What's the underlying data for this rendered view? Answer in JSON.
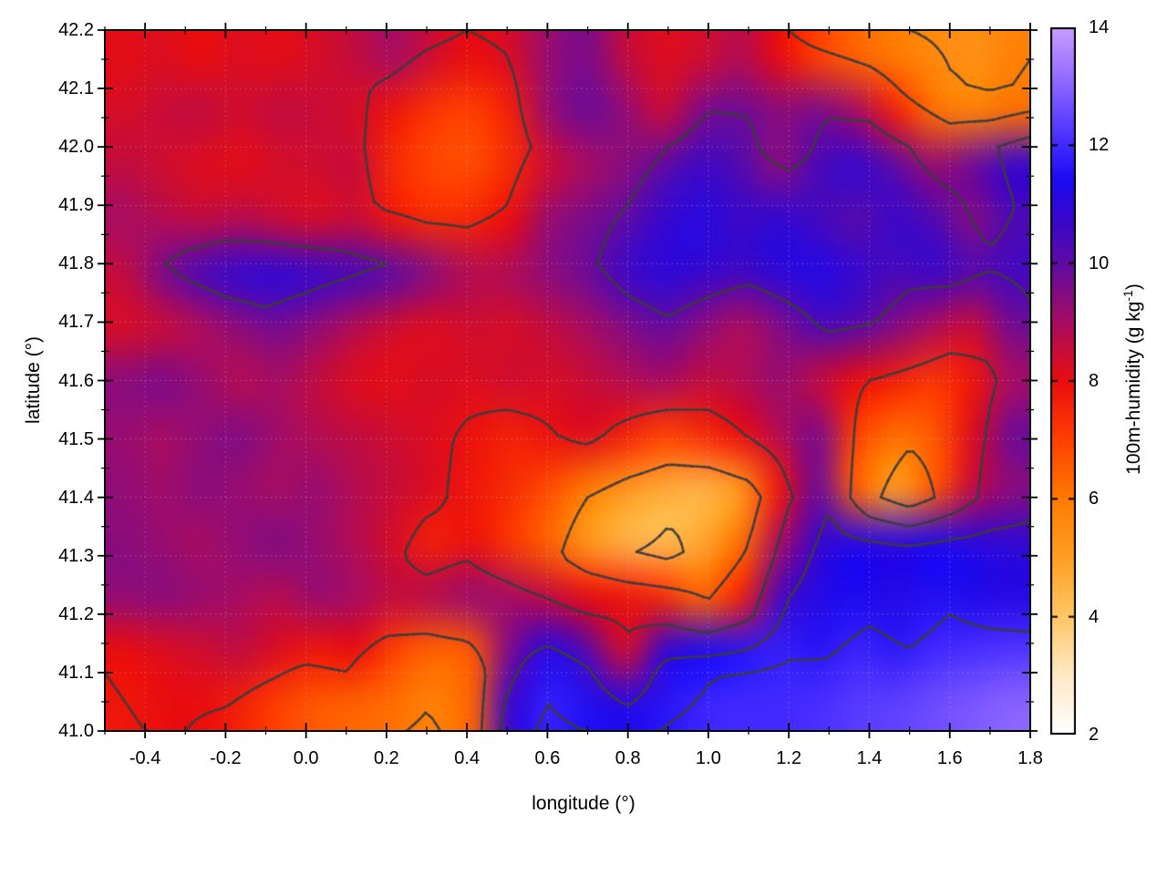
{
  "chart_data": {
    "type": "heatmap",
    "title": "",
    "xlabel": "longitude (°)",
    "ylabel": "latitude (°)",
    "xlim": [
      -0.5,
      1.8
    ],
    "ylim": [
      41.0,
      42.2
    ],
    "grid_dotted": true,
    "x_tick_values": [
      -0.4,
      -0.2,
      0.0,
      0.2,
      0.4,
      0.6,
      0.8,
      1.0,
      1.2,
      1.4,
      1.6,
      1.8
    ],
    "x_tick_labels": [
      "-0.4",
      "-0.2",
      "0.0",
      "0.2",
      "0.4",
      "0.6",
      "0.8",
      "1.0",
      "1.2",
      "1.4",
      "1.6",
      "1.8"
    ],
    "x_minor_step": 0.1,
    "y_tick_values": [
      41.0,
      41.1,
      41.2,
      41.3,
      41.4,
      41.5,
      41.6,
      41.7,
      41.8,
      41.9,
      42.0,
      42.1,
      42.2
    ],
    "y_tick_labels": [
      "41.0",
      "41.1",
      "41.2",
      "41.3",
      "41.4",
      "41.5",
      "41.6",
      "41.7",
      "41.8",
      "41.9",
      "42.0",
      "42.1",
      "42.2"
    ],
    "y_minor_step": 0.05,
    "contour_levels": [
      4.5,
      6,
      8,
      10,
      11.5
    ],
    "contour_color": "#3c3c3c",
    "grid_line_color": "#c8c8c8",
    "frame_color": "#000000",
    "colorbar": {
      "label_main": "100m-humidity (g kg",
      "label_sup": "-1",
      "label_end": ")",
      "min": 2,
      "max": 14,
      "tick_values": [
        2,
        4,
        6,
        8,
        10,
        12,
        14
      ],
      "tick_labels": [
        "2",
        "4",
        "6",
        "8",
        "10",
        "12",
        "14"
      ],
      "palette": [
        {
          "v": 2,
          "c": "#ffffff"
        },
        {
          "v": 3,
          "c": "#ffe9c6"
        },
        {
          "v": 4,
          "c": "#ffc766"
        },
        {
          "v": 5,
          "c": "#ff9e24"
        },
        {
          "v": 6,
          "c": "#ff7b00"
        },
        {
          "v": 7,
          "c": "#ff4000"
        },
        {
          "v": 8,
          "c": "#e90d0e"
        },
        {
          "v": 9,
          "c": "#a70c62"
        },
        {
          "v": 10,
          "c": "#5e0ba4"
        },
        {
          "v": 10.7,
          "c": "#3a07c8"
        },
        {
          "v": 11.4,
          "c": "#1c0af0"
        },
        {
          "v": 12,
          "c": "#4129ff"
        },
        {
          "v": 13,
          "c": "#8a63ff"
        },
        {
          "v": 14,
          "c": "#c89eff"
        }
      ]
    },
    "field": {
      "units": "g kg-1",
      "lon_min": -0.5,
      "lon_max": 1.8,
      "lat_min": 41.0,
      "lat_max": 42.2,
      "cols": 24,
      "rows": 13,
      "row_order": "north_to_south (42.2 -> 41.0, step 0.1)",
      "col_order": "west_to_east (-0.5 -> 1.8, step 0.1)",
      "values": [
        [
          8.1,
          8.2,
          8.0,
          8.2,
          8.1,
          8.3,
          8.6,
          9.0,
          8.4,
          8.0,
          8.3,
          9.2,
          9.6,
          8.6,
          8.2,
          8.4,
          8.8,
          8.0,
          7.0,
          6.4,
          6.0,
          5.6,
          5.4,
          5.8
        ],
        [
          8.3,
          8.5,
          8.6,
          8.4,
          8.6,
          8.5,
          8.3,
          7.8,
          7.2,
          7.0,
          7.6,
          9.2,
          9.8,
          9.3,
          8.5,
          9.6,
          9.8,
          9.4,
          9.6,
          9.0,
          7.6,
          6.2,
          5.8,
          6.2
        ],
        [
          8.6,
          8.4,
          8.2,
          8.1,
          8.3,
          8.4,
          8.5,
          7.4,
          6.9,
          6.8,
          7.4,
          8.4,
          9.0,
          9.4,
          10.0,
          10.6,
          10.2,
          9.4,
          10.4,
          10.8,
          10.0,
          9.2,
          9.8,
          10.8
        ],
        [
          9.0,
          8.8,
          8.6,
          8.8,
          8.5,
          8.3,
          8.5,
          7.8,
          7.4,
          7.5,
          8.0,
          9.2,
          9.6,
          10.0,
          10.8,
          11.1,
          10.7,
          10.9,
          10.5,
          10.1,
          10.7,
          10.3,
          9.5,
          10.3
        ],
        [
          8.6,
          9.6,
          10.4,
          10.8,
          10.9,
          10.7,
          10.4,
          10.0,
          9.4,
          8.8,
          8.9,
          9.4,
          9.8,
          10.6,
          11.0,
          10.8,
          10.6,
          11.0,
          11.2,
          10.8,
          10.4,
          10.7,
          10.2,
          10.5
        ],
        [
          8.3,
          8.5,
          8.9,
          9.4,
          9.7,
          9.3,
          8.8,
          8.4,
          8.2,
          8.4,
          8.3,
          8.6,
          9.0,
          9.5,
          9.9,
          9.4,
          8.9,
          9.5,
          10.3,
          10.1,
          9.5,
          8.9,
          8.5,
          9.7
        ],
        [
          9.4,
          9.6,
          9.2,
          8.8,
          9.0,
          8.6,
          8.2,
          8.1,
          8.3,
          8.2,
          8.4,
          8.3,
          8.5,
          8.8,
          9.0,
          8.6,
          8.8,
          9.2,
          8.6,
          8.0,
          7.6,
          7.2,
          7.8,
          9.0
        ],
        [
          9.2,
          9.0,
          9.3,
          9.5,
          9.1,
          8.8,
          8.6,
          8.4,
          8.2,
          7.9,
          7.6,
          7.9,
          8.2,
          7.6,
          7.0,
          7.4,
          8.0,
          8.8,
          9.6,
          7.0,
          6.2,
          6.6,
          8.2,
          9.8
        ],
        [
          9.3,
          9.1,
          9.4,
          9.2,
          9.0,
          9.2,
          8.8,
          8.5,
          8.2,
          7.8,
          7.4,
          6.8,
          6.0,
          5.2,
          4.7,
          4.5,
          5.2,
          7.8,
          9.8,
          6.4,
          5.0,
          6.6,
          8.6,
          9.4
        ],
        [
          9.4,
          9.2,
          9.0,
          9.3,
          9.5,
          9.2,
          8.8,
          8.3,
          7.6,
          7.9,
          7.2,
          6.4,
          5.2,
          4.5,
          4.3,
          4.8,
          6.2,
          9.0,
          10.8,
          11.2,
          11.0,
          11.3,
          11.1,
          10.9
        ],
        [
          9.3,
          9.4,
          9.2,
          9.0,
          8.8,
          9.2,
          9.0,
          8.6,
          8.8,
          9.2,
          9.0,
          8.6,
          8.0,
          7.8,
          7.4,
          6.4,
          7.6,
          10.4,
          11.2,
          11.4,
          11.2,
          11.5,
          11.3,
          11.2
        ],
        [
          8.0,
          8.2,
          8.4,
          8.6,
          8.2,
          7.8,
          8.0,
          7.0,
          6.4,
          6.6,
          9.6,
          11.2,
          10.2,
          8.4,
          10.8,
          11.4,
          11.6,
          11.8,
          11.6,
          11.9,
          11.7,
          12.0,
          12.1,
          12.2
        ],
        [
          7.8,
          8.0,
          8.0,
          7.6,
          7.0,
          6.6,
          6.4,
          6.2,
          5.8,
          6.4,
          10.8,
          11.8,
          11.5,
          11.2,
          11.6,
          11.9,
          12.0,
          12.0,
          12.1,
          12.3,
          12.4,
          12.6,
          12.8,
          13.0
        ]
      ]
    }
  }
}
